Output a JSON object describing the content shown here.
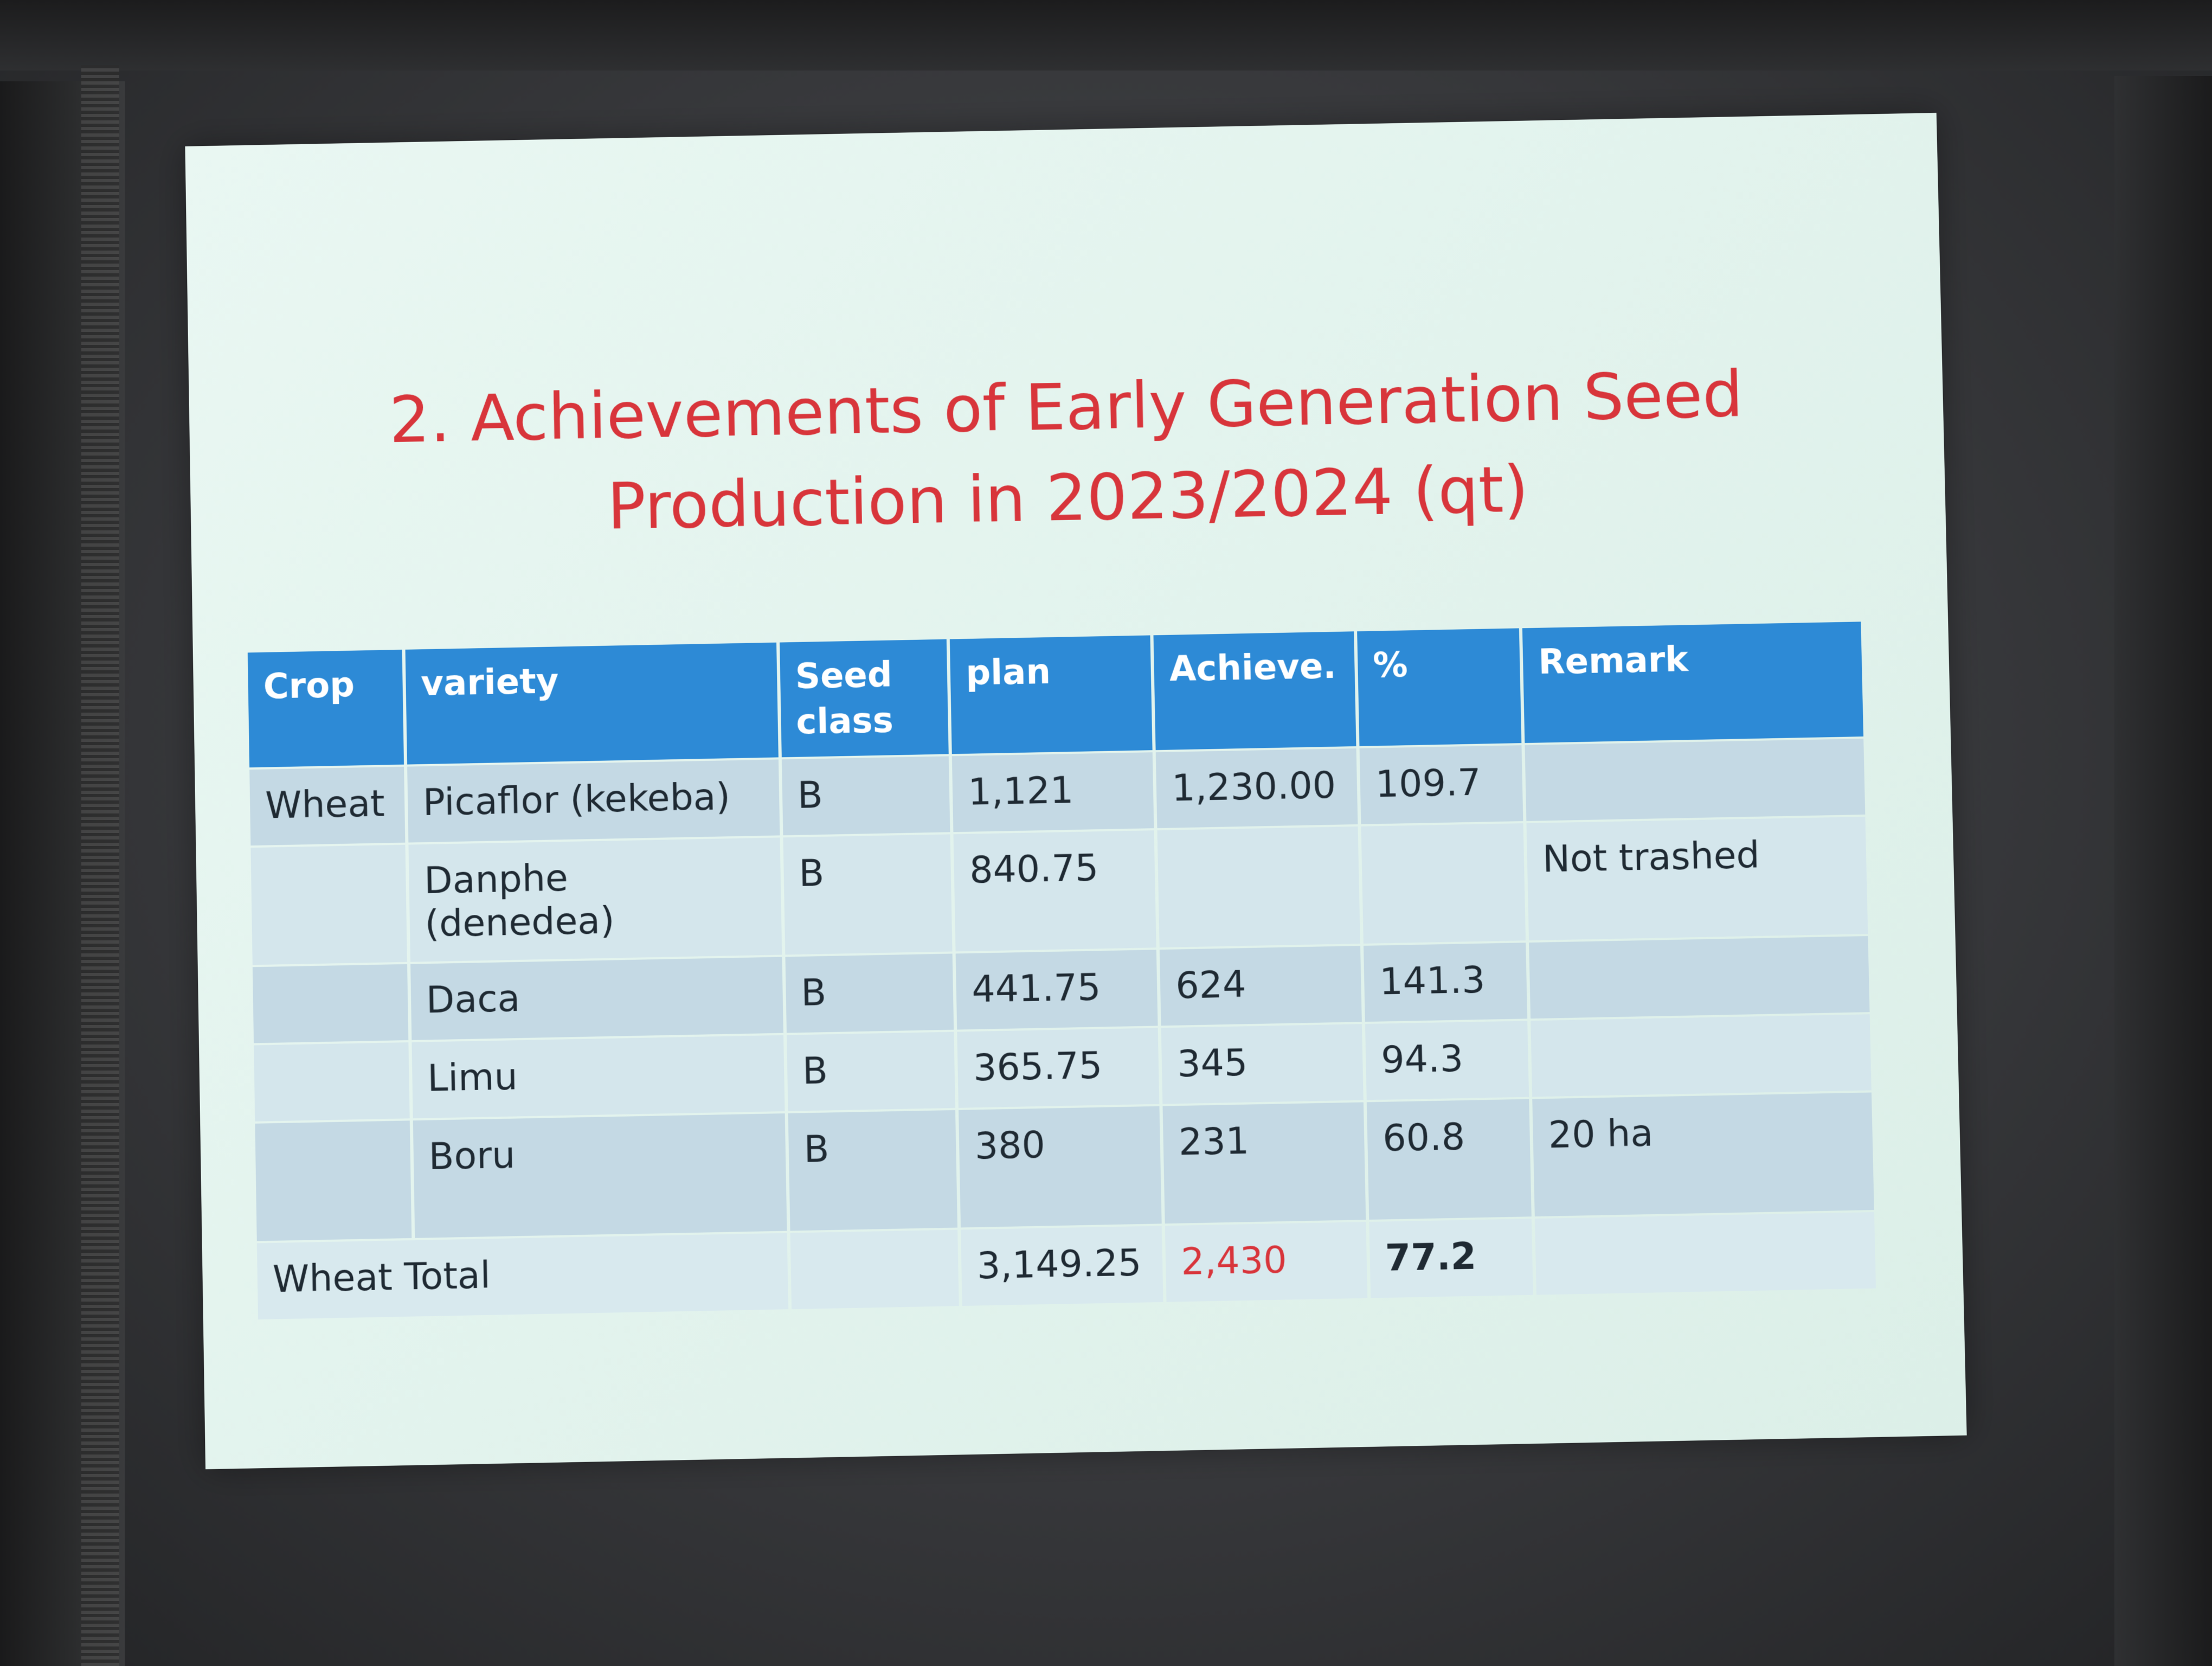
{
  "slide": {
    "title_line1": "2. Achievements of Early Generation Seed",
    "title_line2": "Production  in 2023/2024 (qt)"
  },
  "table": {
    "headers": {
      "crop": "Crop",
      "variety": "variety",
      "seed_class_1": "Seed",
      "seed_class_2": "class",
      "plan": "plan",
      "achieve": "Achieve.",
      "percent": "%",
      "remark": "Remark"
    },
    "rows": [
      {
        "crop": "Wheat",
        "variety": "Picaflor (kekeba)",
        "seed_class": "B",
        "plan": "1,121",
        "achieve": "1,230.00",
        "percent": "109.7",
        "remark": ""
      },
      {
        "crop": "",
        "variety": "Danphe (denedea)",
        "seed_class": "B",
        "plan": "840.75",
        "achieve": "",
        "percent": "",
        "remark": "Not trashed"
      },
      {
        "crop": "",
        "variety": "Daca",
        "seed_class": "B",
        "plan": "441.75",
        "achieve": "624",
        "percent": "141.3",
        "remark": ""
      },
      {
        "crop": "",
        "variety": "Limu",
        "seed_class": "B",
        "plan": "365.75",
        "achieve": "345",
        "percent": "94.3",
        "remark": ""
      },
      {
        "crop": "",
        "variety": "Boru",
        "seed_class": "B",
        "plan": "380",
        "achieve": "231",
        "percent": "60.8",
        "remark": "20 ha"
      }
    ],
    "total": {
      "label": "Wheat Total",
      "plan": "3,149.25",
      "achieve": "2,430",
      "percent": "77.2"
    }
  },
  "colors": {
    "title": "#d8353b",
    "header_bg": "#2d8ad6",
    "total_achieve": "#d8353b"
  }
}
